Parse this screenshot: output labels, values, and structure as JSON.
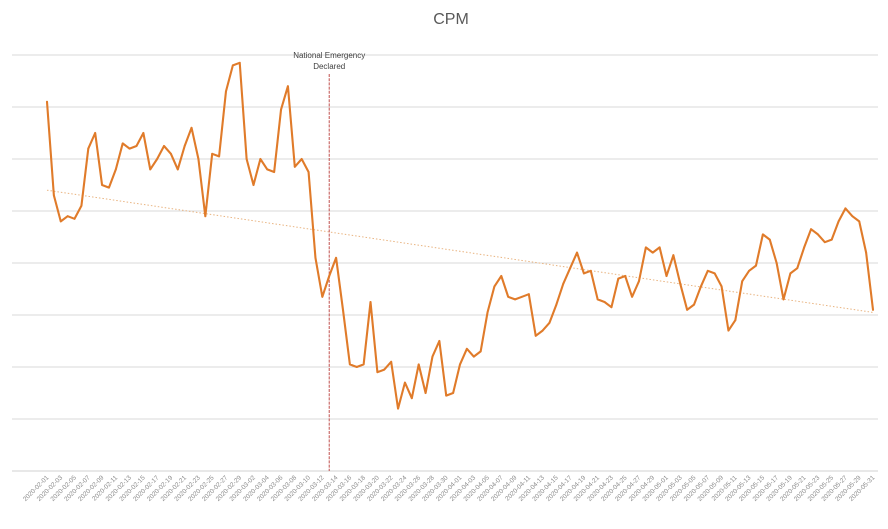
{
  "chart_data": {
    "type": "line",
    "title": "CPM",
    "xlabel": "",
    "ylabel": "",
    "y_tick_labels_shown": false,
    "gridlines": "horizontal",
    "line_color": "#E07B2A",
    "trend_color": "#E9B481",
    "event_line_color": "#C0504D",
    "x_start": "2020-02-01",
    "x_end": "2020-05-31",
    "tick_labels": [
      "2020-02-01",
      "2020-02-03",
      "2020-02-05",
      "2020-02-07",
      "2020-02-09",
      "2020-02-11",
      "2020-02-13",
      "2020-02-15",
      "2020-02-17",
      "2020-02-19",
      "2020-02-21",
      "2020-02-23",
      "2020-02-25",
      "2020-02-27",
      "2020-02-29",
      "2020-03-02",
      "2020-03-04",
      "2020-03-06",
      "2020-03-08",
      "2020-03-10",
      "2020-03-12",
      "2020-03-14",
      "2020-03-16",
      "2020-03-18",
      "2020-03-20",
      "2020-03-22",
      "2020-03-24",
      "2020-03-26",
      "2020-03-28",
      "2020-03-30",
      "2020-04-01",
      "2020-04-03",
      "2020-04-05",
      "2020-04-07",
      "2020-04-09",
      "2020-04-11",
      "2020-04-13",
      "2020-04-15",
      "2020-04-17",
      "2020-04-19",
      "2020-04-21",
      "2020-04-23",
      "2020-04-25",
      "2020-04-27",
      "2020-04-29",
      "2020-05-01",
      "2020-05-03",
      "2020-05-05",
      "2020-05-07",
      "2020-05-09",
      "2020-05-11",
      "2020-05-13",
      "2020-05-15",
      "2020-05-17",
      "2020-05-19",
      "2020-05-21",
      "2020-05-23",
      "2020-05-25",
      "2020-05-27",
      "2020-05-29",
      "2020-05-31"
    ],
    "ylim": [
      0,
      8
    ],
    "series": [
      {
        "values": [
          7.1,
          5.3,
          4.8,
          4.9,
          4.85,
          5.1,
          6.2,
          6.5,
          5.5,
          5.45,
          5.8,
          6.3,
          6.2,
          6.25,
          6.5,
          5.8,
          6.0,
          6.25,
          6.1,
          5.8,
          6.25,
          6.6,
          6.0,
          4.9,
          6.1,
          6.05,
          7.3,
          7.8,
          7.85,
          6.0,
          5.5,
          6.0,
          5.8,
          5.75,
          6.95,
          7.4,
          5.85,
          6.0,
          5.75,
          4.1,
          3.35,
          3.75,
          4.1,
          3.1,
          2.05,
          2.0,
          2.05,
          3.25,
          1.9,
          1.95,
          2.1,
          1.2,
          1.7,
          1.4,
          2.05,
          1.5,
          2.2,
          2.5,
          1.45,
          1.5,
          2.05,
          2.35,
          2.2,
          2.3,
          3.05,
          3.55,
          3.75,
          3.35,
          3.3,
          3.35,
          3.4,
          2.6,
          2.7,
          2.85,
          3.2,
          3.6,
          3.9,
          4.2,
          3.8,
          3.85,
          3.3,
          3.25,
          3.15,
          3.7,
          3.75,
          3.35,
          3.65,
          4.3,
          4.2,
          4.3,
          3.75,
          4.15,
          3.6,
          3.1,
          3.2,
          3.55,
          3.85,
          3.8,
          3.55,
          2.7,
          2.9,
          3.65,
          3.85,
          3.95,
          4.55,
          4.45,
          4.0,
          3.3,
          3.8,
          3.9,
          4.3,
          4.65,
          4.55,
          4.4,
          4.45,
          4.8,
          5.05,
          4.9,
          4.8,
          4.2,
          3.1
        ]
      }
    ],
    "trendline": {
      "from": 5.4,
      "to": 3.05
    },
    "annotation": {
      "date": "2020-03-13",
      "lines": [
        "National Emergency",
        "Declared"
      ]
    }
  }
}
